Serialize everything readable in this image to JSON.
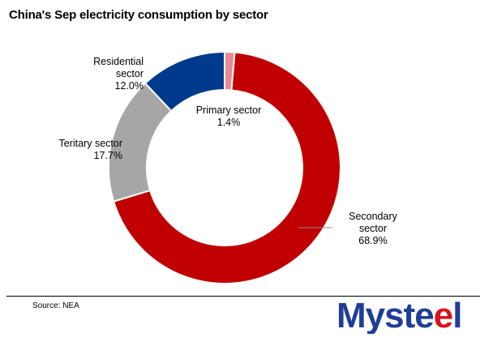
{
  "chart_data": {
    "type": "pie",
    "subtype": "donut",
    "title": "China's Sep electricity consumption by sector",
    "series": [
      {
        "name": "Primary sector",
        "value": 1.4,
        "label": "1.4%",
        "color": "#E88A96"
      },
      {
        "name": "Secondary sector",
        "value": 68.9,
        "label": "68.9%",
        "color": "#C00000"
      },
      {
        "name": "Teritary sector",
        "value": 17.7,
        "label": "17.7%",
        "color": "#A6A6A6"
      },
      {
        "name": "Residential sector",
        "value": 12.0,
        "label": "12.0%",
        "color": "#003A8C"
      }
    ],
    "labels": [
      {
        "lines": [
          "Primary sector",
          "1.4%"
        ],
        "anchor": "middle"
      },
      {
        "lines": [
          "Secondary",
          "sector",
          "68.9%"
        ],
        "anchor": "middle"
      },
      {
        "lines": [
          "Teritary sector",
          "17.7%"
        ],
        "anchor": "end"
      },
      {
        "lines": [
          "Residential",
          "sector",
          "12.0%"
        ],
        "anchor": "end"
      }
    ]
  },
  "footer": {
    "source": "Source: NEA",
    "logo_text": "Mysteel"
  },
  "colors": {
    "brand_blue": "#1F3E96",
    "brand_red": "#D7141B"
  }
}
